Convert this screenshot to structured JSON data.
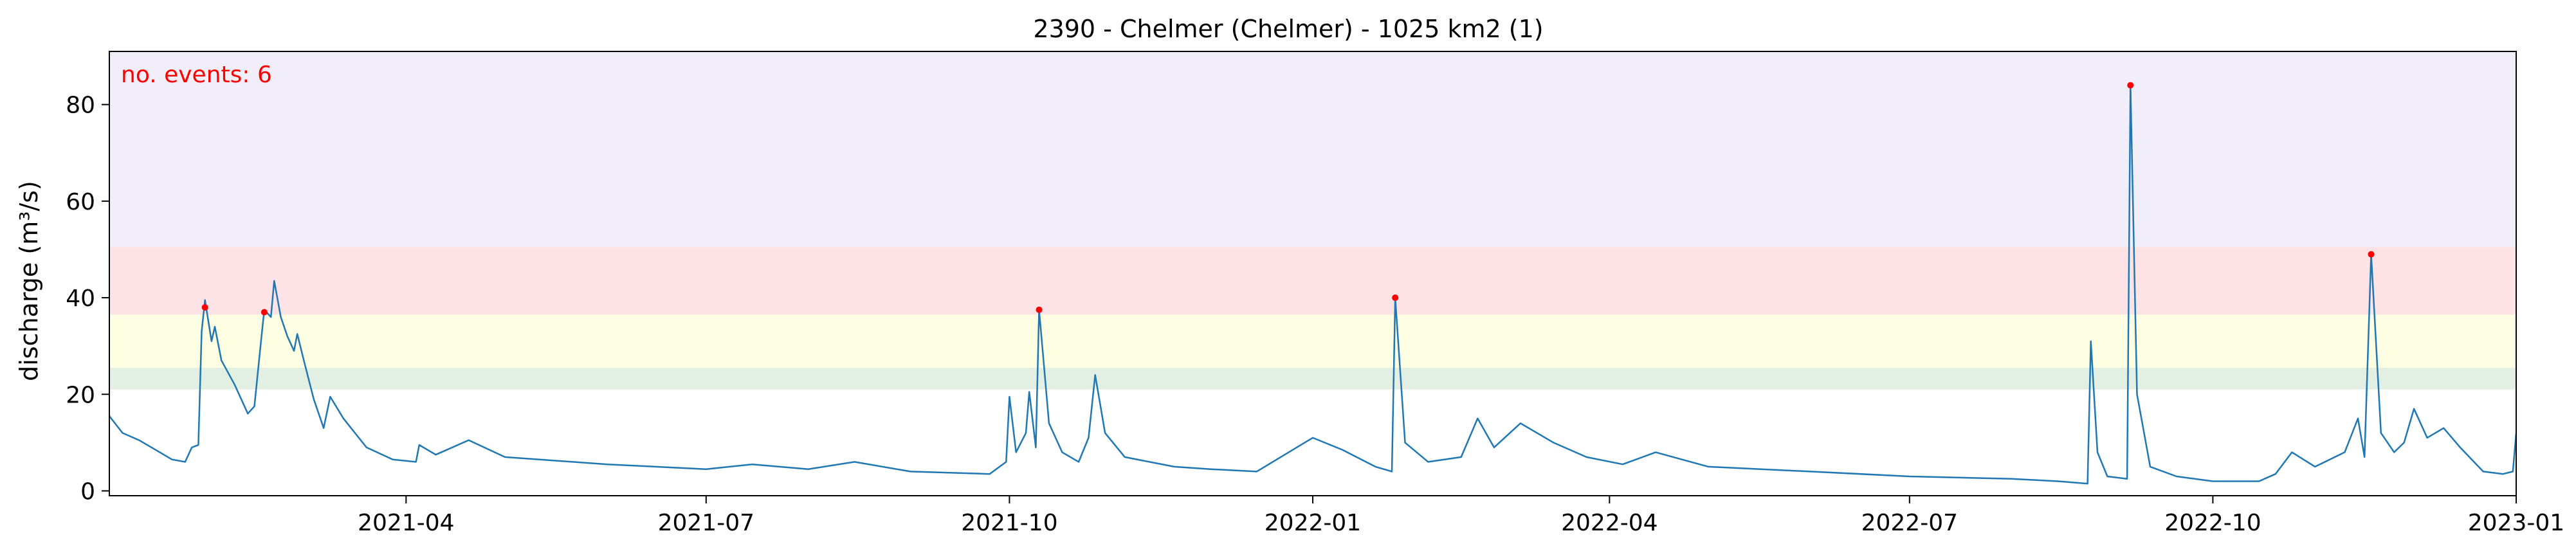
{
  "chart_data": {
    "type": "line",
    "title": "2390 - Chelmer (Chelmer) - 1025 km2 (1)",
    "xlabel": "",
    "ylabel": "discharge (m³/s)",
    "annotation": "no. events: 6",
    "xlim": [
      "2021-01-01",
      "2023-01-01"
    ],
    "ylim": [
      -1,
      91
    ],
    "x_ticks": [
      "2021-04",
      "2021-07",
      "2021-10",
      "2022-01",
      "2022-04",
      "2022-07",
      "2022-10",
      "2023-01"
    ],
    "y_ticks": [
      0,
      20,
      40,
      60,
      80
    ],
    "grid": false,
    "threshold_bands": [
      {
        "from": 21,
        "to": 25.5,
        "color": "#e3efe3"
      },
      {
        "from": 25.5,
        "to": 36.5,
        "color": "#fefee3"
      },
      {
        "from": 36.5,
        "to": 50.5,
        "color": "#fee3e6"
      },
      {
        "from": 50.5,
        "to": 91,
        "color": "#f1eef9"
      }
    ],
    "series": [
      {
        "color": "#1f77b4",
        "points": [
          [
            "2021-01-01",
            15.5
          ],
          [
            "2021-01-05",
            12
          ],
          [
            "2021-01-10",
            10.5
          ],
          [
            "2021-01-15",
            8.5
          ],
          [
            "2021-01-20",
            6.5
          ],
          [
            "2021-01-24",
            6
          ],
          [
            "2021-01-26",
            9
          ],
          [
            "2021-01-28",
            9.5
          ],
          [
            "2021-01-29",
            33
          ],
          [
            "2021-01-30",
            39.5
          ],
          [
            "2021-02-01",
            31
          ],
          [
            "2021-02-02",
            34
          ],
          [
            "2021-02-04",
            27
          ],
          [
            "2021-02-08",
            22
          ],
          [
            "2021-02-12",
            16
          ],
          [
            "2021-02-14",
            17.5
          ],
          [
            "2021-02-16",
            31
          ],
          [
            "2021-02-17",
            37.5
          ],
          [
            "2021-02-19",
            36
          ],
          [
            "2021-02-20",
            43.5
          ],
          [
            "2021-02-22",
            36
          ],
          [
            "2021-02-24",
            32
          ],
          [
            "2021-02-26",
            29
          ],
          [
            "2021-02-27",
            32.5
          ],
          [
            "2021-03-01",
            27
          ],
          [
            "2021-03-04",
            19
          ],
          [
            "2021-03-07",
            13
          ],
          [
            "2021-03-09",
            19.5
          ],
          [
            "2021-03-13",
            15
          ],
          [
            "2021-03-20",
            9
          ],
          [
            "2021-03-28",
            6.5
          ],
          [
            "2021-04-04",
            6
          ],
          [
            "2021-04-05",
            9.5
          ],
          [
            "2021-04-10",
            7.5
          ],
          [
            "2021-04-20",
            10.5
          ],
          [
            "2021-05-01",
            7
          ],
          [
            "2021-06-01",
            5.5
          ],
          [
            "2021-07-01",
            4.5
          ],
          [
            "2021-07-15",
            5.5
          ],
          [
            "2021-08-01",
            4.5
          ],
          [
            "2021-08-15",
            6
          ],
          [
            "2021-09-01",
            4
          ],
          [
            "2021-09-25",
            3.5
          ],
          [
            "2021-09-30",
            6
          ],
          [
            "2021-10-01",
            19.5
          ],
          [
            "2021-10-03",
            8
          ],
          [
            "2021-10-06",
            12
          ],
          [
            "2021-10-07",
            20.5
          ],
          [
            "2021-10-09",
            9
          ],
          [
            "2021-10-10",
            37.5
          ],
          [
            "2021-10-13",
            14
          ],
          [
            "2021-10-17",
            8
          ],
          [
            "2021-10-22",
            6
          ],
          [
            "2021-10-25",
            11
          ],
          [
            "2021-10-27",
            24
          ],
          [
            "2021-10-30",
            12
          ],
          [
            "2021-11-05",
            7
          ],
          [
            "2021-11-20",
            5
          ],
          [
            "2021-12-01",
            4.5
          ],
          [
            "2021-12-15",
            4
          ],
          [
            "2022-01-01",
            11
          ],
          [
            "2022-01-10",
            8.5
          ],
          [
            "2022-01-20",
            5
          ],
          [
            "2022-01-25",
            4
          ],
          [
            "2022-01-26",
            40
          ],
          [
            "2022-01-29",
            10
          ],
          [
            "2022-02-05",
            6
          ],
          [
            "2022-02-15",
            7
          ],
          [
            "2022-02-20",
            15
          ],
          [
            "2022-02-25",
            9
          ],
          [
            "2022-03-05",
            14
          ],
          [
            "2022-03-15",
            10
          ],
          [
            "2022-03-25",
            7
          ],
          [
            "2022-04-05",
            5.5
          ],
          [
            "2022-04-15",
            8
          ],
          [
            "2022-05-01",
            5
          ],
          [
            "2022-06-01",
            4
          ],
          [
            "2022-07-01",
            3
          ],
          [
            "2022-08-01",
            2.5
          ],
          [
            "2022-08-15",
            2
          ],
          [
            "2022-08-24",
            1.5
          ],
          [
            "2022-08-25",
            31
          ],
          [
            "2022-08-27",
            8
          ],
          [
            "2022-08-30",
            3
          ],
          [
            "2022-09-05",
            2.5
          ],
          [
            "2022-09-06",
            84
          ],
          [
            "2022-09-08",
            20
          ],
          [
            "2022-09-12",
            5
          ],
          [
            "2022-09-20",
            3
          ],
          [
            "2022-10-01",
            2
          ],
          [
            "2022-10-15",
            2
          ],
          [
            "2022-10-20",
            3.5
          ],
          [
            "2022-10-25",
            8
          ],
          [
            "2022-11-01",
            5
          ],
          [
            "2022-11-10",
            8
          ],
          [
            "2022-11-14",
            15
          ],
          [
            "2022-11-16",
            7
          ],
          [
            "2022-11-18",
            49
          ],
          [
            "2022-11-21",
            12
          ],
          [
            "2022-11-25",
            8
          ],
          [
            "2022-11-28",
            10
          ],
          [
            "2022-12-01",
            17
          ],
          [
            "2022-12-05",
            11
          ],
          [
            "2022-12-10",
            13
          ],
          [
            "2022-12-15",
            9
          ],
          [
            "2022-12-22",
            4
          ],
          [
            "2022-12-28",
            3.5
          ],
          [
            "2022-12-31",
            4
          ],
          [
            "2023-01-01",
            12
          ]
        ]
      }
    ],
    "events": [
      [
        "2021-01-30",
        38
      ],
      [
        "2021-02-17",
        37
      ],
      [
        "2021-10-10",
        37.5
      ],
      [
        "2022-01-26",
        40
      ],
      [
        "2022-09-06",
        84
      ],
      [
        "2022-11-18",
        49
      ]
    ],
    "colors": {
      "line": "#1f77b4",
      "event": "#ff0000",
      "annotation": "#ff0000"
    }
  }
}
